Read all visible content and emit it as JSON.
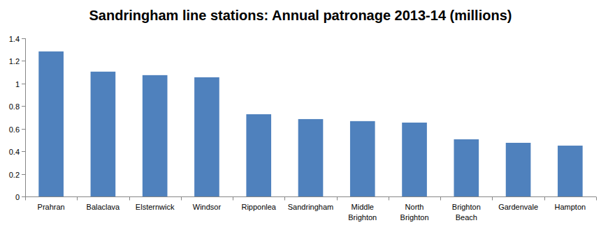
{
  "chart_data": {
    "type": "bar",
    "title": "Sandringham line stations: Annual patronage 2013-14 (millions)",
    "categories": [
      "Prahran",
      "Balaclava",
      "Elsternwick",
      "Windsor",
      "Ripponlea",
      "Sandringham",
      "Middle Brighton",
      "North Brighton",
      "Brighton Beach",
      "Gardenvale",
      "Hampton"
    ],
    "values": [
      1.284,
      1.105,
      1.074,
      1.055,
      0.728,
      0.685,
      0.667,
      0.654,
      0.506,
      0.475,
      0.45
    ],
    "color": "#4f81bd",
    "ylim": [
      0,
      1.4
    ],
    "yticks": [
      0,
      0.2,
      0.4,
      0.6,
      0.8,
      1,
      1.2,
      1.4
    ],
    "grid": false
  }
}
